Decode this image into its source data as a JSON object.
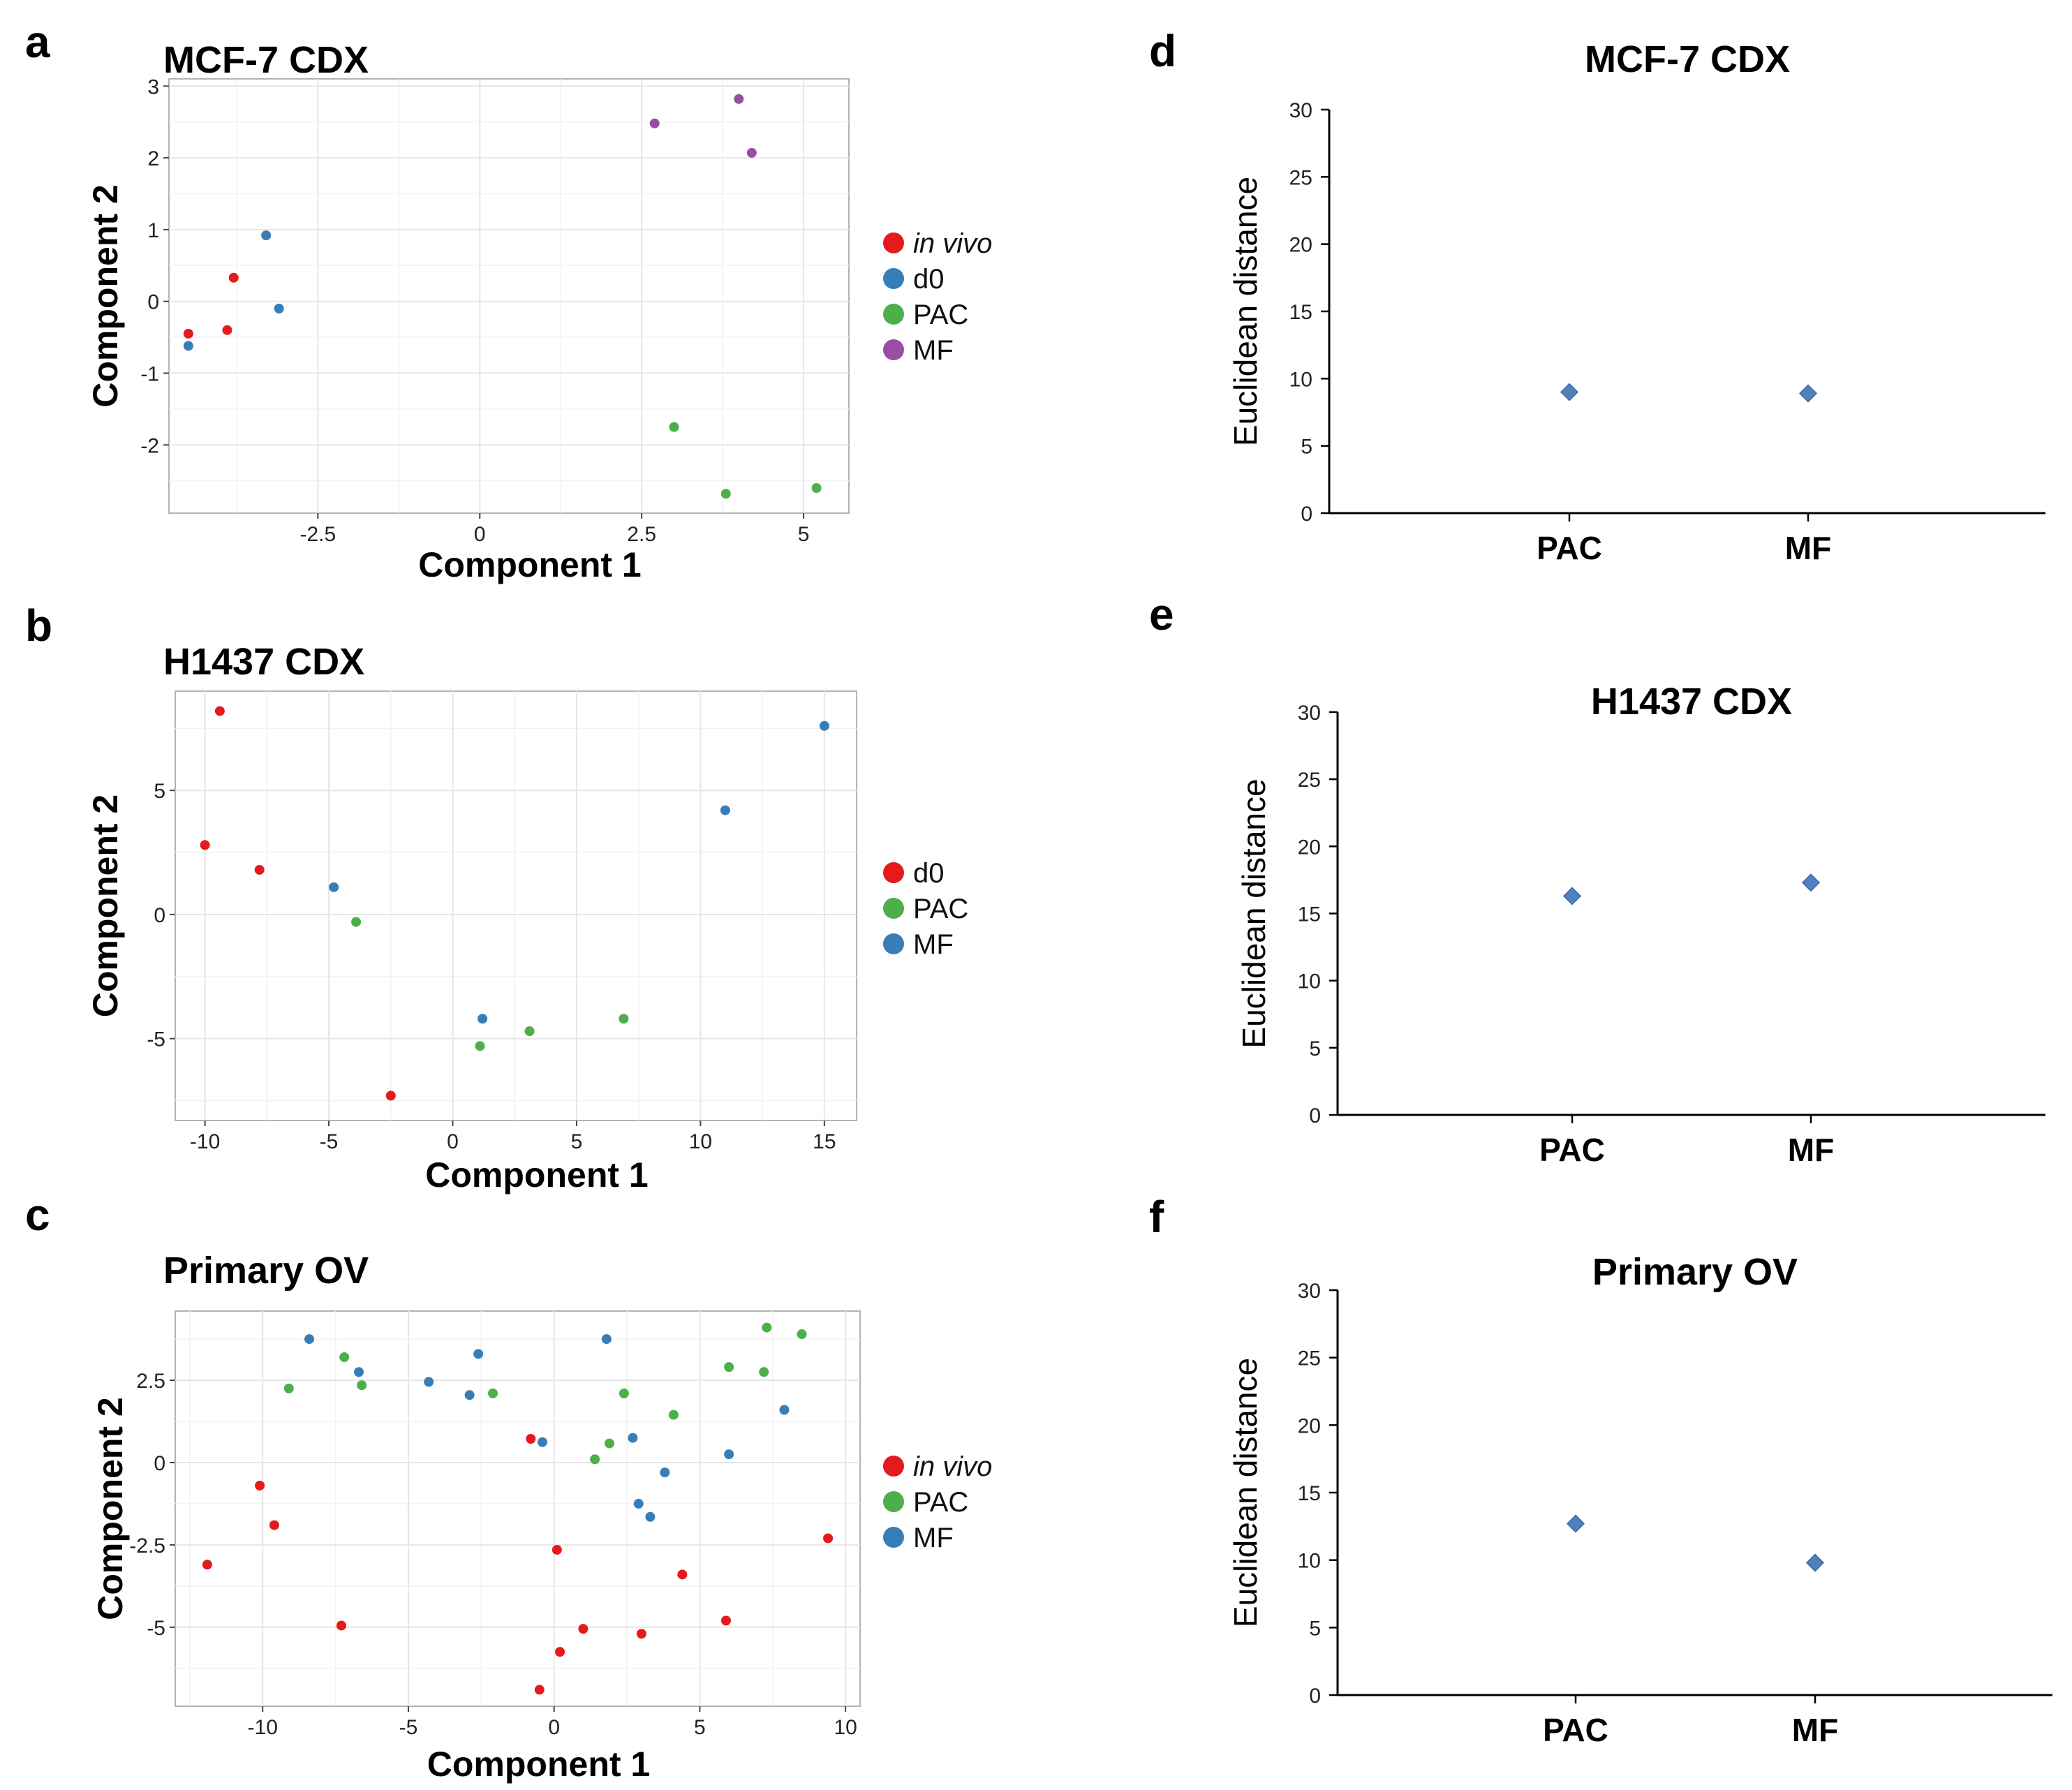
{
  "panel_letters": [
    "a",
    "b",
    "c",
    "d",
    "e",
    "f"
  ],
  "colors": {
    "red": "#e41a1c",
    "blue": "#377eb8",
    "green": "#4daf4a",
    "purple": "#984ea3",
    "diamond": "#4f81bd"
  },
  "chart_data": [
    {
      "id": "a",
      "type": "scatter",
      "title": "MCF-7 CDX",
      "xlabel": "Component 1",
      "ylabel": "Component 2",
      "xlim": [
        -4.8,
        5.7
      ],
      "ylim": [
        -2.95,
        3.1
      ],
      "xticks": [
        -2.5,
        0,
        2.5,
        5
      ],
      "xtick_labels": [
        "-2.5",
        "0",
        "2.5",
        "5"
      ],
      "yticks": [
        -2,
        -1,
        0,
        1,
        2,
        3
      ],
      "ytick_labels": [
        "-2",
        "-1",
        "0",
        "1",
        "2",
        "3"
      ],
      "legend": [
        {
          "name": "in vivo",
          "color": "#e41a1c",
          "italic": true
        },
        {
          "name": "d0",
          "color": "#377eb8",
          "italic": false
        },
        {
          "name": "PAC",
          "color": "#4daf4a",
          "italic": false
        },
        {
          "name": "MF",
          "color": "#984ea3",
          "italic": false
        }
      ],
      "series": [
        {
          "name": "in vivo",
          "color": "#e41a1c",
          "points": [
            [
              -4.5,
              -0.45
            ],
            [
              -3.8,
              0.33
            ],
            [
              -3.9,
              -0.4
            ]
          ]
        },
        {
          "name": "d0",
          "color": "#377eb8",
          "points": [
            [
              -4.5,
              -0.62
            ],
            [
              -3.3,
              0.92
            ],
            [
              -3.1,
              -0.1
            ]
          ]
        },
        {
          "name": "PAC",
          "color": "#4daf4a",
          "points": [
            [
              3.0,
              -1.75
            ],
            [
              3.8,
              -2.68
            ],
            [
              5.2,
              -2.6
            ]
          ]
        },
        {
          "name": "MF",
          "color": "#984ea3",
          "points": [
            [
              2.7,
              2.48
            ],
            [
              4.0,
              2.82
            ],
            [
              4.2,
              2.07
            ]
          ]
        }
      ]
    },
    {
      "id": "b",
      "type": "scatter",
      "title": "H1437 CDX",
      "xlabel": "Component 1",
      "ylabel": "Component 2",
      "xlim": [
        -11.2,
        16.3
      ],
      "ylim": [
        -8.3,
        9.0
      ],
      "xticks": [
        -10,
        -5,
        0,
        5,
        10,
        15
      ],
      "xtick_labels": [
        "-10",
        "-5",
        "0",
        "5",
        "10",
        "15"
      ],
      "yticks": [
        -5,
        0,
        5
      ],
      "ytick_labels": [
        "-5",
        "0",
        "5"
      ],
      "legend": [
        {
          "name": "d0",
          "color": "#e41a1c",
          "italic": false
        },
        {
          "name": "PAC",
          "color": "#4daf4a",
          "italic": false
        },
        {
          "name": "MF",
          "color": "#377eb8",
          "italic": false
        }
      ],
      "series": [
        {
          "name": "d0",
          "color": "#e41a1c",
          "points": [
            [
              -9.4,
              8.2
            ],
            [
              -10.0,
              2.8
            ],
            [
              -7.8,
              1.8
            ],
            [
              -2.5,
              -7.3
            ]
          ]
        },
        {
          "name": "PAC",
          "color": "#4daf4a",
          "points": [
            [
              -3.9,
              -0.3
            ],
            [
              1.1,
              -5.3
            ],
            [
              3.1,
              -4.7
            ],
            [
              6.9,
              -4.2
            ]
          ]
        },
        {
          "name": "MF",
          "color": "#377eb8",
          "points": [
            [
              -4.8,
              1.1
            ],
            [
              1.2,
              -4.2
            ],
            [
              11.0,
              4.2
            ],
            [
              15.0,
              7.6
            ]
          ]
        }
      ]
    },
    {
      "id": "c",
      "type": "scatter",
      "title": "Primary OV",
      "xlabel": "Component 1",
      "ylabel": "Component 2",
      "xlim": [
        -13.0,
        10.5
      ],
      "ylim": [
        -7.4,
        4.6
      ],
      "xticks": [
        -10,
        -5,
        0,
        5,
        10
      ],
      "xtick_labels": [
        "-10",
        "-5",
        "0",
        "5",
        "10"
      ],
      "yticks": [
        -5,
        -2.5,
        0,
        2.5
      ],
      "ytick_labels": [
        "-5",
        "-2.5",
        "0",
        "2.5"
      ],
      "legend": [
        {
          "name": "in vivo",
          "color": "#e41a1c",
          "italic": true
        },
        {
          "name": "PAC",
          "color": "#4daf4a",
          "italic": false
        },
        {
          "name": "MF",
          "color": "#377eb8",
          "italic": false
        }
      ],
      "series": [
        {
          "name": "in vivo",
          "color": "#e41a1c",
          "points": [
            [
              -10.1,
              -0.7
            ],
            [
              -9.6,
              -1.9
            ],
            [
              -11.9,
              -3.1
            ],
            [
              -7.3,
              -4.95
            ],
            [
              -0.8,
              0.72
            ],
            [
              0.1,
              -2.65
            ],
            [
              1.0,
              -5.05
            ],
            [
              0.2,
              -5.75
            ],
            [
              -0.5,
              -6.9
            ],
            [
              3.0,
              -5.2
            ],
            [
              4.4,
              -3.4
            ],
            [
              5.9,
              -4.8
            ],
            [
              9.4,
              -2.3
            ]
          ]
        },
        {
          "name": "PAC",
          "color": "#4daf4a",
          "points": [
            [
              -9.1,
              2.25
            ],
            [
              -7.2,
              3.2
            ],
            [
              -6.6,
              2.35
            ],
            [
              -2.1,
              2.1
            ],
            [
              2.4,
              2.1
            ],
            [
              1.9,
              0.58
            ],
            [
              1.4,
              0.1
            ],
            [
              4.1,
              1.45
            ],
            [
              6.0,
              2.9
            ],
            [
              7.2,
              2.75
            ],
            [
              7.3,
              4.1
            ],
            [
              8.5,
              3.9
            ]
          ]
        },
        {
          "name": "MF",
          "color": "#377eb8",
          "points": [
            [
              -8.4,
              3.75
            ],
            [
              -6.7,
              2.75
            ],
            [
              -4.3,
              2.45
            ],
            [
              -2.9,
              2.05
            ],
            [
              -2.6,
              3.3
            ],
            [
              -0.4,
              0.62
            ],
            [
              1.8,
              3.75
            ],
            [
              2.7,
              0.75
            ],
            [
              3.8,
              -0.3
            ],
            [
              2.9,
              -1.25
            ],
            [
              3.3,
              -1.65
            ],
            [
              6.0,
              0.25
            ],
            [
              7.9,
              1.6
            ]
          ]
        }
      ]
    },
    {
      "id": "d",
      "type": "scatter",
      "title": "MCF-7 CDX",
      "ylabel": "Euclidean distance",
      "ylim": [
        0,
        30
      ],
      "yticks": [
        0,
        5,
        10,
        15,
        20,
        25,
        30
      ],
      "ytick_labels": [
        "0",
        "5",
        "10",
        "15",
        "20",
        "25",
        "30"
      ],
      "categories": [
        "PAC",
        "MF"
      ],
      "values": [
        9.0,
        8.9
      ]
    },
    {
      "id": "e",
      "type": "scatter",
      "title": "H1437 CDX",
      "ylabel": "Euclidean distance",
      "ylim": [
        0,
        30
      ],
      "yticks": [
        0,
        5,
        10,
        15,
        20,
        25,
        30
      ],
      "ytick_labels": [
        "0",
        "5",
        "10",
        "15",
        "20",
        "25",
        "30"
      ],
      "categories": [
        "PAC",
        "MF"
      ],
      "values": [
        16.3,
        17.3
      ]
    },
    {
      "id": "f",
      "type": "scatter",
      "title": "Primary OV",
      "ylabel": "Euclidean distance",
      "ylim": [
        0,
        30
      ],
      "yticks": [
        0,
        5,
        10,
        15,
        20,
        25,
        30
      ],
      "ytick_labels": [
        "0",
        "5",
        "10",
        "15",
        "20",
        "25",
        "30"
      ],
      "categories": [
        "PAC",
        "MF"
      ],
      "values": [
        12.7,
        9.8
      ]
    }
  ]
}
